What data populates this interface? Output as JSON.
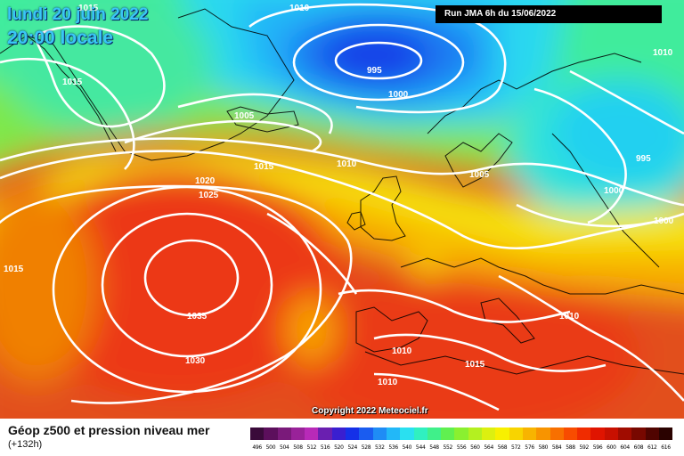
{
  "header": {
    "date_line": "lundi 20 juin 2022",
    "time_line": "20:00 locale",
    "run_info": "Run JMA 6h du 15/06/2022"
  },
  "map": {
    "copyright": "Copyright 2022 Meteociel.fr",
    "isobar_labels": [
      "1015",
      "1010",
      "995",
      "1000",
      "1005",
      "1015",
      "1010",
      "1005",
      "995",
      "1000",
      "1000",
      "1020",
      "1025",
      "1035",
      "1030",
      "1015",
      "1015",
      "1010",
      "1015",
      "1010",
      "1010",
      "1010"
    ]
  },
  "legend": {
    "title": "Géop z500 et pression niveau mer",
    "subtitle": "(+132h)",
    "scale_values": [
      "496",
      "500",
      "504",
      "508",
      "512",
      "516",
      "520",
      "524",
      "528",
      "532",
      "536",
      "540",
      "544",
      "548",
      "552",
      "556",
      "560",
      "564",
      "568",
      "572",
      "576",
      "580",
      "584",
      "588",
      "592",
      "596",
      "600",
      "604",
      "608",
      "612",
      "616"
    ],
    "scale_colors": [
      "#3a0a3a",
      "#5c0f5c",
      "#7a1a7a",
      "#992299",
      "#b82ab8",
      "#6a1fb0",
      "#3a1fd0",
      "#1530e8",
      "#1a5cf0",
      "#1f8cf5",
      "#22b8f8",
      "#2ae0f0",
      "#30f0c0",
      "#40f08a",
      "#60f050",
      "#8af030",
      "#b4f020",
      "#dcf010",
      "#f8f000",
      "#f8d400",
      "#f8b400",
      "#f89400",
      "#f87000",
      "#f84c00",
      "#f02c00",
      "#e01400",
      "#c81000",
      "#a00c00",
      "#780800",
      "#500400",
      "#2a0200"
    ]
  }
}
